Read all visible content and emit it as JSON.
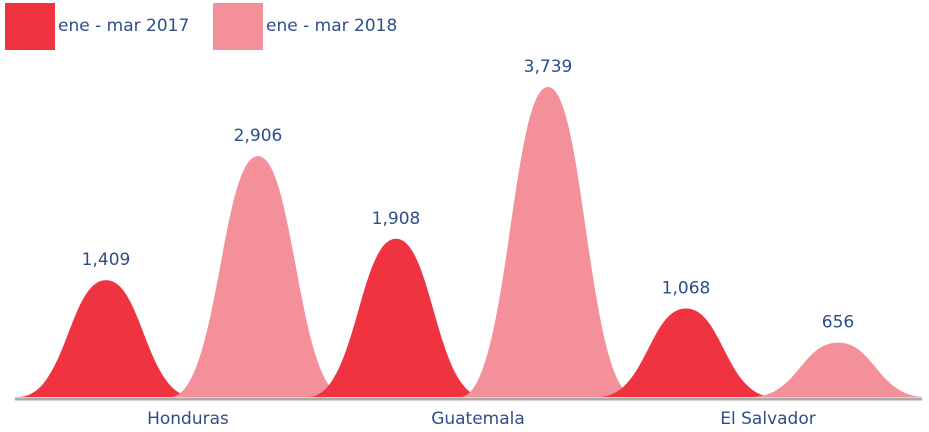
{
  "chart_data": {
    "type": "bell",
    "categories": [
      "Honduras",
      "Guatemala",
      "El Salvador"
    ],
    "series": [
      {
        "name": "ene - mar 2017",
        "color": "#ef3340",
        "values": [
          1409,
          1908,
          1068
        ],
        "value_labels": [
          "1,409",
          "1,908",
          "1,068"
        ]
      },
      {
        "name": "ene - mar 2018",
        "color": "#f4909a",
        "values": [
          2906,
          3739,
          656
        ],
        "value_labels": [
          "2,906",
          "3,739",
          "656"
        ]
      }
    ]
  }
}
